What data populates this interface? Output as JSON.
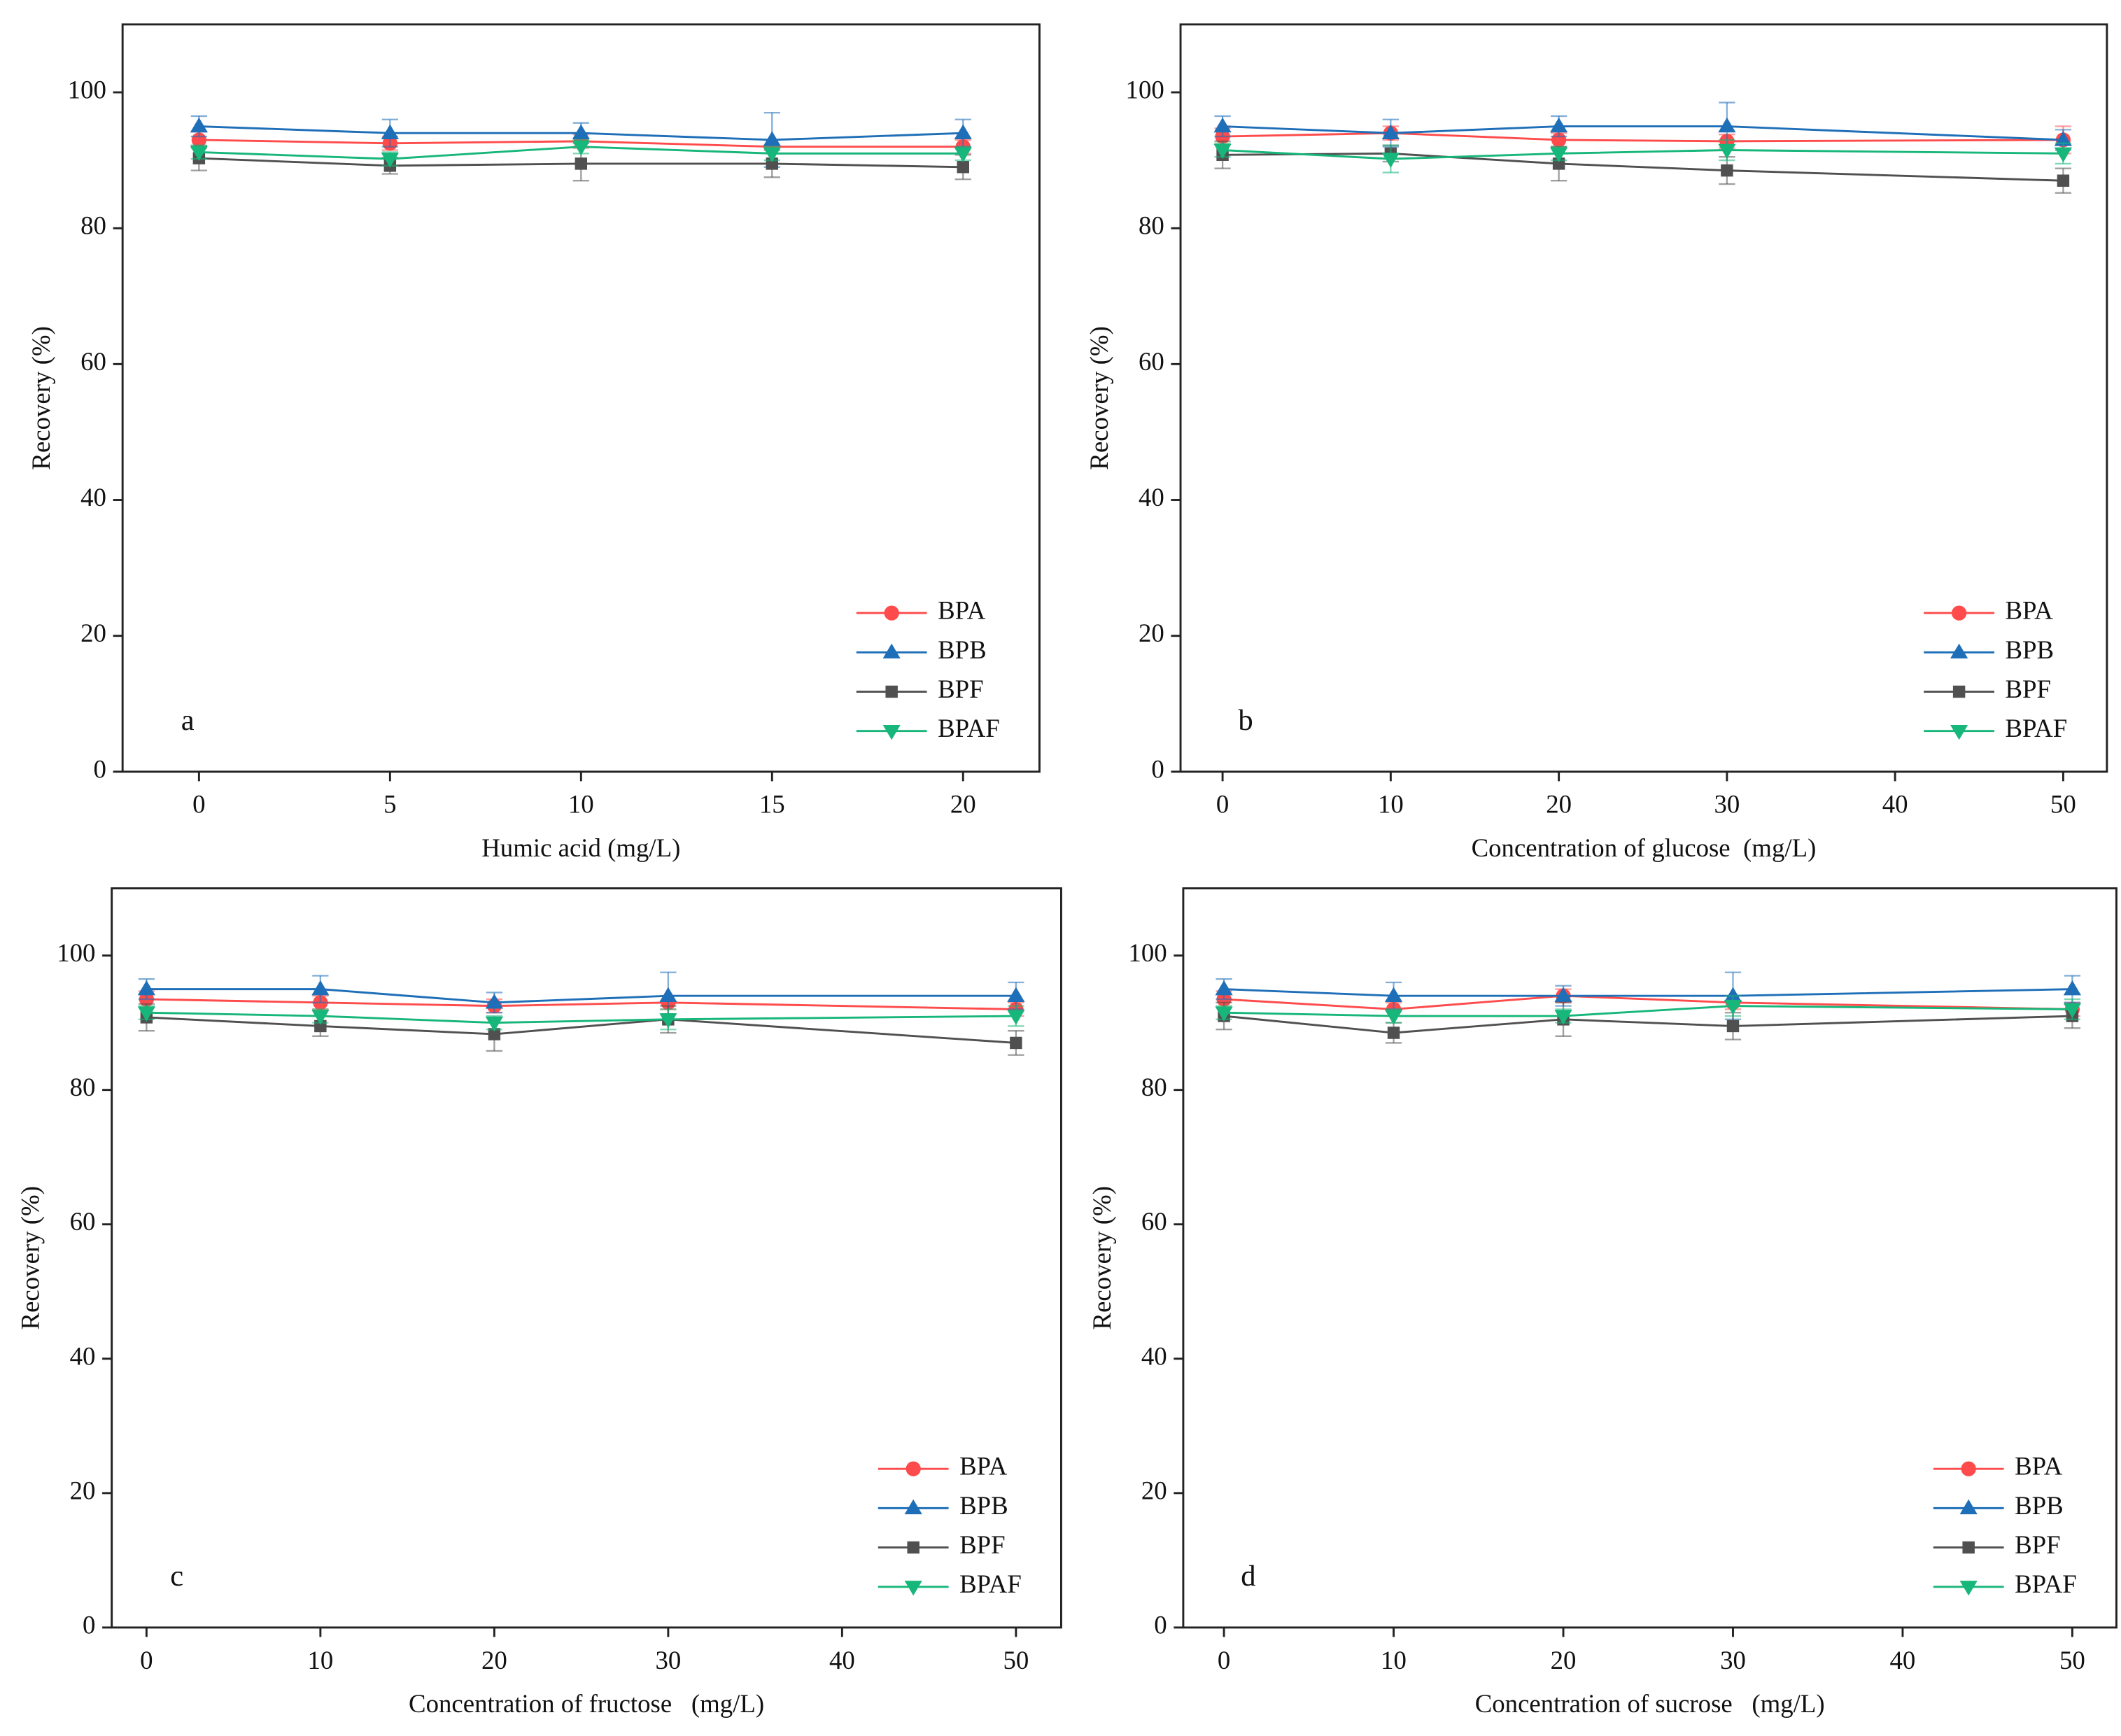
{
  "chart_data": [
    {
      "type": "line",
      "label": "a",
      "xlabel": "Humic acid (mg/L)",
      "ylabel": "Recovery (%)",
      "x": [
        0,
        5,
        10,
        15,
        20
      ],
      "xlim": [
        -2,
        22
      ],
      "xticks": [
        0,
        5,
        10,
        15,
        20
      ],
      "ylim": [
        0,
        110
      ],
      "yticks": [
        0,
        20,
        40,
        60,
        80,
        100
      ],
      "legend": "lower right",
      "series": [
        {
          "name": "BPA",
          "color": "#ff4b4b",
          "marker": "circle",
          "values": [
            93,
            92.5,
            92.8,
            92,
            92
          ],
          "errors": [
            1.2,
            1,
            1,
            1,
            1
          ]
        },
        {
          "name": "BPB",
          "color": "#1f6fb8",
          "marker": "triangle-up",
          "values": [
            95,
            94,
            94,
            93,
            94
          ],
          "errors": [
            1.5,
            2,
            1.5,
            4,
            2
          ]
        },
        {
          "name": "BPF",
          "color": "#505050",
          "marker": "square",
          "values": [
            90.3,
            89.2,
            89.5,
            89.5,
            89
          ],
          "errors": [
            1.8,
            1.2,
            2.5,
            2,
            1.8
          ]
        },
        {
          "name": "BPAF",
          "color": "#17b67a",
          "marker": "triangle-down",
          "values": [
            91.2,
            90.2,
            92,
            91,
            91
          ],
          "errors": [
            1,
            1,
            1,
            1,
            1
          ]
        }
      ]
    },
    {
      "type": "line",
      "label": "b",
      "xlabel": "Concentration of glucose  (mg/L)",
      "ylabel": "Recovery (%)",
      "x": [
        0,
        10,
        20,
        30,
        50
      ],
      "xlim": [
        -2.5,
        52.6
      ],
      "xticks": [
        0,
        10,
        20,
        30,
        40,
        50
      ],
      "ylim": [
        0,
        110
      ],
      "yticks": [
        0,
        20,
        40,
        60,
        80,
        100
      ],
      "legend": "lower right",
      "series": [
        {
          "name": "BPA",
          "color": "#ff4b4b",
          "marker": "circle",
          "values": [
            93.5,
            94,
            93,
            92.8,
            93
          ],
          "errors": [
            1.2,
            1,
            1,
            1,
            2
          ]
        },
        {
          "name": "BPB",
          "color": "#1f6fb8",
          "marker": "triangle-up",
          "values": [
            95,
            94,
            95,
            95,
            93
          ],
          "errors": [
            1.5,
            2,
            1.5,
            3.5,
            1.5
          ]
        },
        {
          "name": "BPF",
          "color": "#505050",
          "marker": "square",
          "values": [
            90.8,
            91,
            89.5,
            88.5,
            87
          ],
          "errors": [
            2,
            1.2,
            2.5,
            2,
            1.8
          ]
        },
        {
          "name": "BPAF",
          "color": "#17b67a",
          "marker": "triangle-down",
          "values": [
            91.5,
            90.2,
            91,
            91.5,
            91
          ],
          "errors": [
            1,
            2,
            1,
            1.5,
            1.5
          ]
        }
      ]
    },
    {
      "type": "line",
      "label": "c",
      "xlabel": "Concentration of fructose   (mg/L)",
      "ylabel": "Recovery (%)",
      "x": [
        0,
        10,
        20,
        30,
        50
      ],
      "xlim": [
        -2,
        52.6
      ],
      "xticks": [
        0,
        10,
        20,
        30,
        40,
        50
      ],
      "ylim": [
        0,
        110
      ],
      "yticks": [
        0,
        20,
        40,
        60,
        80,
        100
      ],
      "legend": "lower right",
      "series": [
        {
          "name": "BPA",
          "color": "#ff4b4b",
          "marker": "circle",
          "values": [
            93.5,
            93,
            92.5,
            93,
            92
          ],
          "errors": [
            1.2,
            1,
            1,
            1,
            1
          ]
        },
        {
          "name": "BPB",
          "color": "#1f6fb8",
          "marker": "triangle-up",
          "values": [
            95,
            95,
            93,
            94,
            94
          ],
          "errors": [
            1.5,
            2,
            1.5,
            3.5,
            2
          ]
        },
        {
          "name": "BPF",
          "color": "#505050",
          "marker": "square",
          "values": [
            90.8,
            89.5,
            88.3,
            90.5,
            87
          ],
          "errors": [
            2,
            1.5,
            2.5,
            2,
            1.8
          ]
        },
        {
          "name": "BPAF",
          "color": "#17b67a",
          "marker": "triangle-down",
          "values": [
            91.5,
            91,
            90,
            90.5,
            91
          ],
          "errors": [
            1,
            1,
            1,
            1.5,
            1.5
          ]
        }
      ]
    },
    {
      "type": "line",
      "label": "d",
      "xlabel": "Concentration of sucrose   (mg/L)",
      "ylabel": "Recovery (%)",
      "x": [
        0,
        10,
        20,
        30,
        50
      ],
      "xlim": [
        -2.4,
        52.6
      ],
      "xticks": [
        0,
        10,
        20,
        30,
        40,
        50
      ],
      "ylim": [
        0,
        110
      ],
      "yticks": [
        0,
        20,
        40,
        60,
        80,
        100
      ],
      "legend": "lower right",
      "series": [
        {
          "name": "BPA",
          "color": "#ff4b4b",
          "marker": "circle",
          "values": [
            93.5,
            92,
            94,
            93,
            92
          ],
          "errors": [
            1.2,
            1,
            1,
            1,
            1
          ]
        },
        {
          "name": "BPB",
          "color": "#1f6fb8",
          "marker": "triangle-up",
          "values": [
            95,
            94,
            94,
            94,
            95
          ],
          "errors": [
            1.5,
            2,
            1.5,
            3.5,
            2
          ]
        },
        {
          "name": "BPF",
          "color": "#505050",
          "marker": "square",
          "values": [
            91,
            88.5,
            90.5,
            89.5,
            91
          ],
          "errors": [
            2,
            1.5,
            2.5,
            2,
            1.8
          ]
        },
        {
          "name": "BPAF",
          "color": "#17b67a",
          "marker": "triangle-down",
          "values": [
            91.5,
            91,
            91,
            92.5,
            92
          ],
          "errors": [
            1,
            1,
            1,
            1.5,
            1.5
          ]
        }
      ]
    }
  ]
}
